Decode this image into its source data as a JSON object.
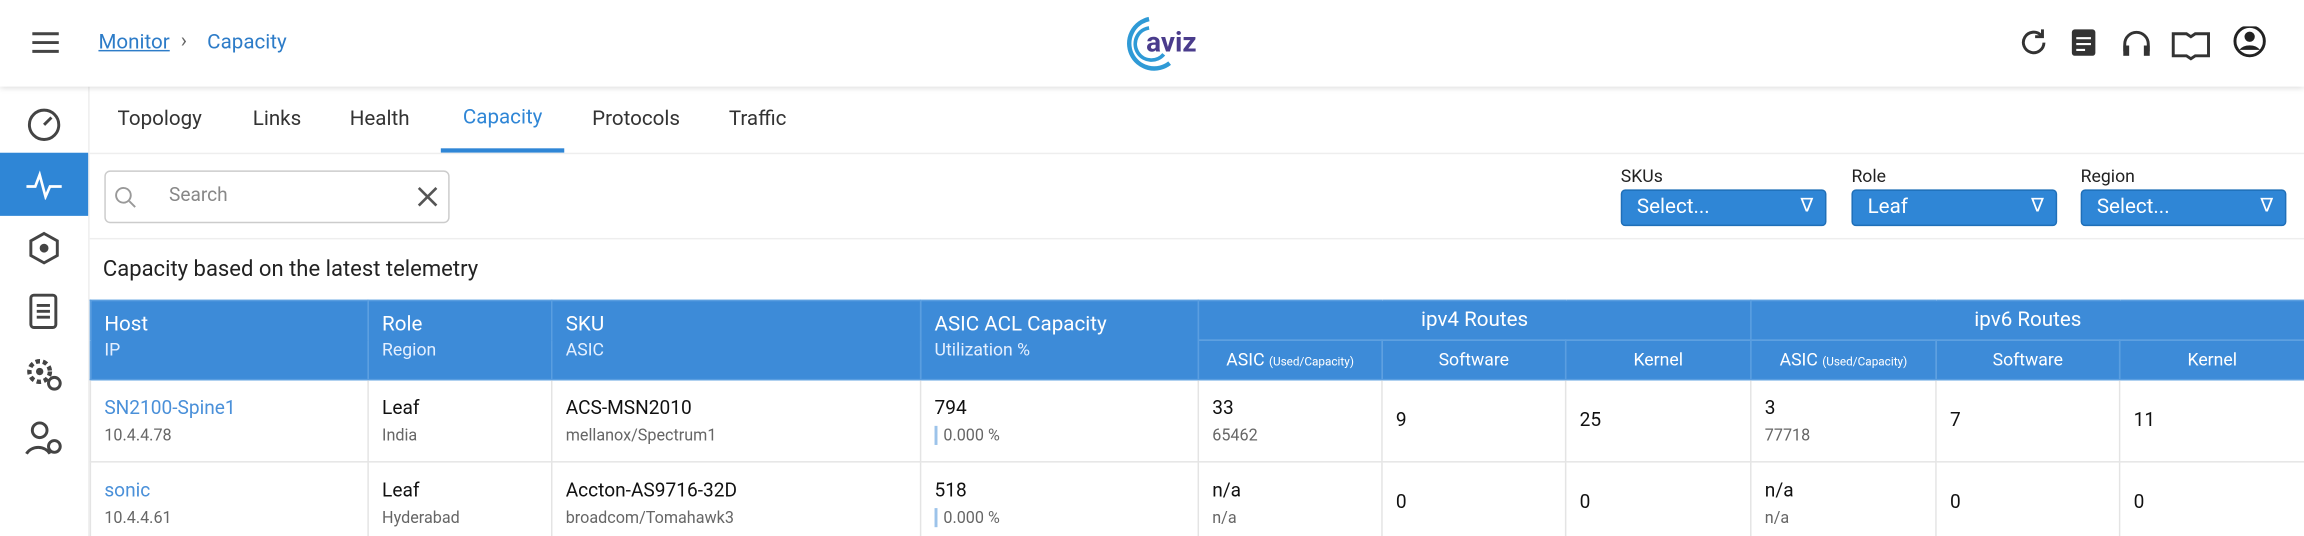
{
  "header": {
    "breadcrumb": [
      "Monitor",
      "Capacity"
    ],
    "logo": "aviz"
  },
  "tabs": {
    "items": [
      "Topology",
      "Links",
      "Health",
      "Capacity",
      "Protocols",
      "Traffic"
    ],
    "active": 3
  },
  "search": {
    "placeholder": "Search"
  },
  "filters": [
    {
      "label": "SKUs",
      "value": "Select..."
    },
    {
      "label": "Role",
      "value": "Leaf"
    },
    {
      "label": "Region",
      "value": "Select..."
    }
  ],
  "table": {
    "title": "Capacity based on the latest telemetry",
    "columns": [
      {
        "title": "Host",
        "subtitle": "IP"
      },
      {
        "title": "Role",
        "subtitle": "Region"
      },
      {
        "title": "SKU",
        "subtitle": "ASIC"
      },
      {
        "title": "ASIC ACL Capacity",
        "subtitle": "Utilization %"
      }
    ],
    "groups": [
      {
        "title": "ipv4 Routes",
        "subcolumns": [
          {
            "title": "ASIC",
            "note": "(Used/Capacity)"
          },
          {
            "title": "Software"
          },
          {
            "title": "Kernel"
          }
        ]
      },
      {
        "title": "ipv6 Routes",
        "subcolumns": [
          {
            "title": "ASIC",
            "note": "(Used/Capacity)"
          },
          {
            "title": "Software"
          },
          {
            "title": "Kernel"
          }
        ]
      }
    ],
    "rows": [
      {
        "host": "SN2100-Spine1",
        "ip": "10.4.4.78",
        "role": "Leaf",
        "region": "India",
        "sku": "ACS-MSN2010",
        "asic": "mellanox/Spectrum1",
        "acl": "794",
        "utilization": "0.000 %",
        "ipv4": {
          "asic_used": "33",
          "asic_capacity": "65462",
          "software": "9",
          "kernel": "25"
        },
        "ipv6": {
          "asic_used": "3",
          "asic_capacity": "77718",
          "software": "7",
          "kernel": "11"
        }
      },
      {
        "host": "sonic",
        "ip": "10.4.4.61",
        "role": "Leaf",
        "region": "Hyderabad",
        "sku": "Accton-AS9716-32D",
        "asic": "broadcom/Tomahawk3",
        "acl": "518",
        "utilization": "0.000 %",
        "ipv4": {
          "asic_used": "n/a",
          "asic_capacity": "n/a",
          "software": "0",
          "kernel": "0"
        },
        "ipv6": {
          "asic_used": "n/a",
          "asic_capacity": "n/a",
          "software": "0",
          "kernel": "0"
        }
      }
    ]
  }
}
